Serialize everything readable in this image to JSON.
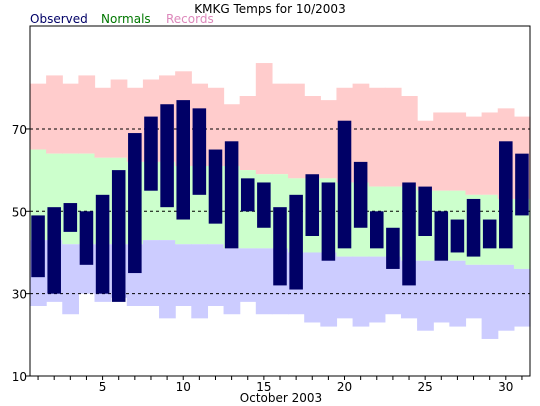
{
  "chart_data": {
    "type": "bar",
    "title": "KMKG Temps for 10/2003",
    "xlabel": "October 2003",
    "ylabel": "",
    "ylim": [
      10,
      95
    ],
    "xlim": [
      0.5,
      31.5
    ],
    "yticks": [
      10,
      30,
      50,
      70
    ],
    "xticks": [
      5,
      10,
      15,
      20,
      25,
      30
    ],
    "grid_lines_y": [
      30,
      50,
      70
    ],
    "legend": {
      "placement": "top-left",
      "entries": [
        {
          "label": "Observed",
          "color": "#000066"
        },
        {
          "label": "Normals",
          "color": "#007700"
        },
        {
          "label": "Records",
          "color": "#dd88bb"
        }
      ]
    },
    "colors": {
      "observed": "#000066",
      "normals_band": "#ccffcc",
      "record_high_band": "#ffcccc",
      "record_low_band": "#ccccff"
    },
    "days": [
      1,
      2,
      3,
      4,
      5,
      6,
      7,
      8,
      9,
      10,
      11,
      12,
      13,
      14,
      15,
      16,
      17,
      18,
      19,
      20,
      21,
      22,
      23,
      24,
      25,
      26,
      27,
      28,
      29,
      30,
      31
    ],
    "observed_high": [
      49,
      51,
      52,
      50,
      54,
      60,
      69,
      73,
      76,
      77,
      75,
      65,
      67,
      58,
      57,
      51,
      54,
      59,
      57,
      72,
      62,
      50,
      46,
      57,
      56,
      50,
      48,
      53,
      48,
      67,
      64
    ],
    "observed_low": [
      34,
      30,
      45,
      37,
      30,
      28,
      35,
      55,
      51,
      48,
      54,
      47,
      41,
      50,
      46,
      32,
      31,
      44,
      38,
      41,
      46,
      41,
      36,
      32,
      44,
      38,
      40,
      39,
      41,
      41,
      49
    ],
    "normal_high": [
      65,
      64,
      64,
      64,
      63,
      63,
      62,
      62,
      62,
      61,
      61,
      61,
      61,
      60,
      59,
      59,
      58,
      58,
      58,
      57,
      57,
      56,
      56,
      56,
      55,
      55,
      55,
      54,
      54,
      53,
      53
    ],
    "normal_low": [
      43,
      43,
      42,
      42,
      42,
      42,
      42,
      43,
      43,
      42,
      42,
      42,
      41,
      41,
      41,
      41,
      40,
      40,
      40,
      39,
      39,
      39,
      39,
      38,
      38,
      38,
      38,
      37,
      37,
      37,
      36
    ],
    "record_high": [
      81,
      83,
      81,
      83,
      80,
      82,
      80,
      82,
      83,
      84,
      81,
      80,
      76,
      78,
      86,
      81,
      81,
      78,
      77,
      80,
      81,
      80,
      80,
      78,
      72,
      74,
      74,
      73,
      74,
      75,
      73
    ],
    "record_low": [
      27,
      28,
      25,
      30,
      28,
      29,
      27,
      27,
      24,
      27,
      24,
      27,
      25,
      28,
      25,
      25,
      25,
      23,
      22,
      24,
      22,
      23,
      25,
      24,
      21,
      23,
      22,
      24,
      19,
      21,
      22
    ]
  }
}
